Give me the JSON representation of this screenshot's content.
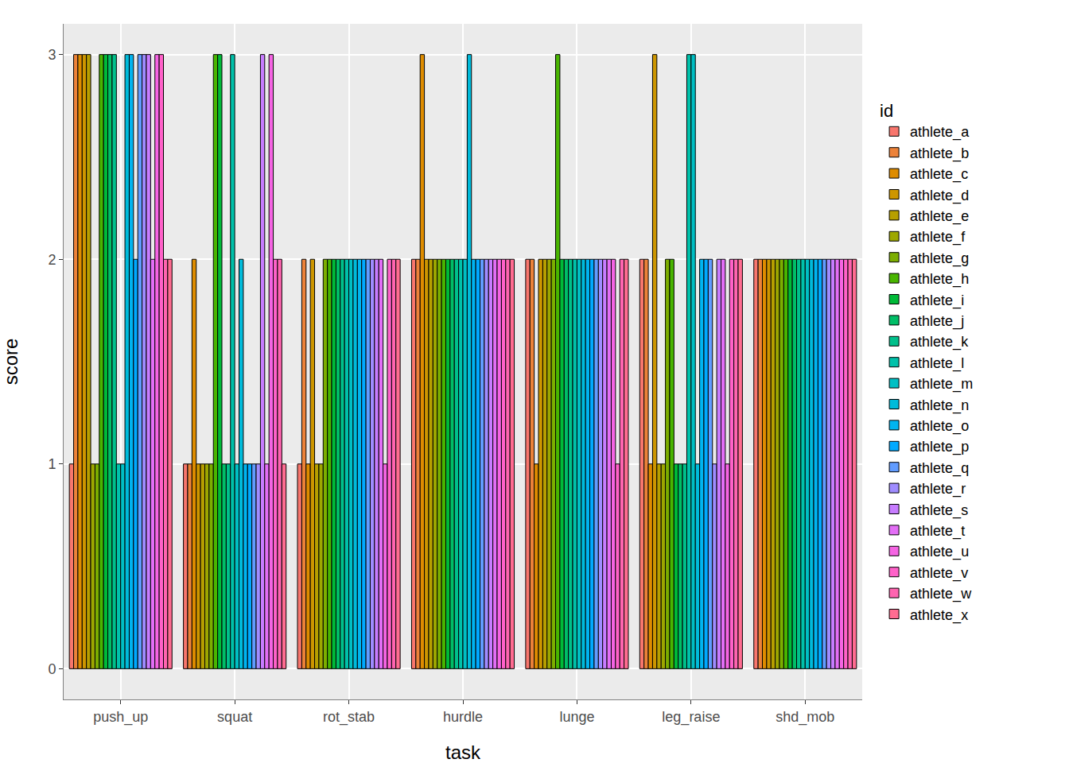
{
  "chart_data": {
    "type": "bar",
    "xlabel": "task",
    "ylabel": "score",
    "legend_title": "id",
    "legend": "right",
    "grid": true,
    "categories": [
      "push_up",
      "squat",
      "rot_stab",
      "hurdle",
      "lunge",
      "leg_raise",
      "shd_mob"
    ],
    "ylim": [
      -0.15,
      3.15
    ],
    "yticks": [
      0,
      1,
      2,
      3
    ],
    "series": [
      {
        "name": "athlete_a",
        "color": "#F8766D",
        "values": [
          1,
          1,
          1,
          2,
          2,
          2,
          2
        ]
      },
      {
        "name": "athlete_b",
        "color": "#EC8239",
        "values": [
          3,
          1,
          2,
          2,
          2,
          2,
          2
        ]
      },
      {
        "name": "athlete_c",
        "color": "#DE8C00",
        "values": [
          3,
          2,
          1,
          3,
          1,
          1,
          2
        ]
      },
      {
        "name": "athlete_d",
        "color": "#CD9600",
        "values": [
          3,
          1,
          2,
          2,
          2,
          3,
          2
        ]
      },
      {
        "name": "athlete_e",
        "color": "#B79F00",
        "values": [
          3,
          1,
          1,
          2,
          2,
          1,
          2
        ]
      },
      {
        "name": "athlete_f",
        "color": "#9DA700",
        "values": [
          1,
          1,
          1,
          2,
          2,
          1,
          2
        ]
      },
      {
        "name": "athlete_g",
        "color": "#7CAE00",
        "values": [
          1,
          1,
          2,
          2,
          2,
          2,
          2
        ]
      },
      {
        "name": "athlete_h",
        "color": "#49B500",
        "values": [
          3,
          3,
          2,
          2,
          3,
          2,
          2
        ]
      },
      {
        "name": "athlete_i",
        "color": "#00BA38",
        "values": [
          3,
          3,
          2,
          2,
          2,
          1,
          2
        ]
      },
      {
        "name": "athlete_j",
        "color": "#00BE67",
        "values": [
          3,
          1,
          2,
          2,
          2,
          1,
          2
        ]
      },
      {
        "name": "athlete_k",
        "color": "#00C08B",
        "values": [
          3,
          1,
          2,
          2,
          2,
          1,
          2
        ]
      },
      {
        "name": "athlete_l",
        "color": "#00C1AA",
        "values": [
          1,
          3,
          2,
          2,
          2,
          3,
          2
        ]
      },
      {
        "name": "athlete_m",
        "color": "#00BFC4",
        "values": [
          1,
          1,
          2,
          2,
          2,
          3,
          2
        ]
      },
      {
        "name": "athlete_n",
        "color": "#00BBDB",
        "values": [
          3,
          2,
          2,
          3,
          2,
          1,
          2
        ]
      },
      {
        "name": "athlete_o",
        "color": "#00B4F0",
        "values": [
          3,
          1,
          2,
          2,
          2,
          2,
          2
        ]
      },
      {
        "name": "athlete_p",
        "color": "#00A9FF",
        "values": [
          2,
          1,
          2,
          2,
          2,
          2,
          2
        ]
      },
      {
        "name": "athlete_q",
        "color": "#619CFF",
        "values": [
          3,
          1,
          2,
          2,
          2,
          2,
          2
        ]
      },
      {
        "name": "athlete_r",
        "color": "#9F8CFF",
        "values": [
          3,
          1,
          2,
          2,
          2,
          1,
          2
        ]
      },
      {
        "name": "athlete_s",
        "color": "#C77CFF",
        "values": [
          3,
          3,
          2,
          2,
          2,
          2,
          2
        ]
      },
      {
        "name": "athlete_t",
        "color": "#E36EF6",
        "values": [
          2,
          1,
          2,
          2,
          2,
          2,
          2
        ]
      },
      {
        "name": "athlete_u",
        "color": "#F564E3",
        "values": [
          3,
          3,
          1,
          2,
          2,
          1,
          2
        ]
      },
      {
        "name": "athlete_v",
        "color": "#FF61C9",
        "values": [
          3,
          2,
          2,
          2,
          1,
          2,
          2
        ]
      },
      {
        "name": "athlete_w",
        "color": "#FF64B0",
        "values": [
          2,
          2,
          2,
          2,
          2,
          2,
          2
        ]
      },
      {
        "name": "athlete_x",
        "color": "#FF6C91",
        "values": [
          2,
          1,
          2,
          2,
          2,
          2,
          2
        ]
      }
    ]
  }
}
